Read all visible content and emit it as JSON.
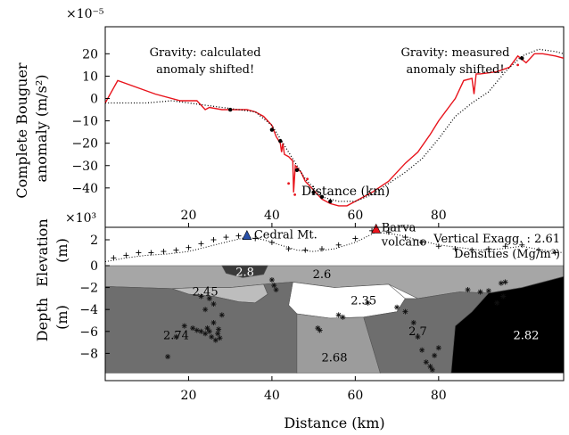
{
  "chart_data": [
    {
      "type": "line",
      "ylabel": "Complete Bouguer anomaly (m/s²)",
      "ylabel_lines": [
        "Complete Bouguer",
        "anomaly (m/s²)"
      ],
      "xlabel": "Distance (km)",
      "y_scale_label": "×10⁻⁵",
      "x_scale_label": "×10³",
      "xlim": [
        0,
        110
      ],
      "ylim": [
        -50,
        25
      ],
      "x_ticks": [
        "20",
        "40",
        "60",
        "80"
      ],
      "y_ticks": [
        "20",
        "10",
        "0",
        "−10",
        "−20",
        "−30",
        "−40"
      ],
      "annotations": [
        {
          "lines": [
            "Gravity: calculated",
            "anomaly shifted!"
          ],
          "x": 24,
          "y": 15
        },
        {
          "lines": [
            "Gravity: measured",
            "anomaly shifted!"
          ],
          "x": 84,
          "y": 15
        }
      ],
      "series": [
        {
          "style": "solid",
          "color": "#e8141c",
          "x": [
            0,
            3,
            12,
            18,
            22,
            24,
            25,
            28,
            30,
            34,
            36,
            38,
            40,
            41,
            42,
            42.3,
            42.6,
            43,
            44,
            45,
            45.2,
            45.6,
            47,
            48,
            50,
            52,
            54,
            56,
            58,
            60,
            64,
            68,
            72,
            75,
            78,
            80,
            84,
            86,
            88,
            88.5,
            89,
            90,
            94,
            97,
            99,
            101,
            103,
            105,
            108,
            110
          ],
          "y": [
            -2,
            8,
            2,
            -1,
            -1,
            -5,
            -4,
            -5,
            -5,
            -5,
            -6,
            -8,
            -12,
            -17,
            -20,
            -24,
            -20,
            -25,
            -26,
            -28,
            -42,
            -30,
            -33,
            -37,
            -41,
            -45,
            -47,
            -48,
            -48,
            -46,
            -42,
            -37,
            -29,
            -24,
            -16,
            -10,
            0,
            8,
            9,
            2,
            11,
            11,
            12,
            14,
            19,
            16,
            20,
            20,
            19,
            18
          ]
        },
        {
          "style": "dotted",
          "color": "#000000",
          "x": [
            0,
            10,
            16,
            20,
            24,
            28,
            32,
            36,
            40,
            44,
            48,
            52,
            56,
            60,
            64,
            68,
            72,
            76,
            80,
            84,
            88,
            92,
            96,
            100,
            104,
            108,
            110
          ],
          "y": [
            -2,
            -2,
            -1,
            -2,
            -3,
            -4,
            -5,
            -6,
            -12,
            -24,
            -36,
            -44,
            -46,
            -46,
            -43,
            -38,
            -33,
            -27,
            -18,
            -8,
            -2,
            3,
            12,
            19,
            22,
            21,
            20
          ]
        }
      ],
      "scatter": {
        "color": "#000000",
        "x": [
          30,
          40,
          42,
          46,
          50,
          52,
          54,
          100
        ],
        "y": [
          -5,
          -14,
          -19,
          -32,
          -42,
          -44,
          -46,
          18
        ]
      },
      "red_marks": {
        "color": "#e8141c",
        "x": [
          44,
          45.5,
          48.5,
          99
        ],
        "y": [
          -38,
          -43,
          -36,
          15
        ]
      }
    },
    {
      "type": "area",
      "xlabel": "Distance (km)",
      "elevation_ylabel": [
        "Elevation",
        "(m)"
      ],
      "depth_ylabel": [
        "Depth",
        "(m)"
      ],
      "xlim": [
        0,
        110
      ],
      "elevation_ylim": [
        0,
        3.5
      ],
      "depth_ylim": [
        -10,
        0
      ],
      "x_ticks": [
        "20",
        "40",
        "60",
        "80"
      ],
      "elevation_y_ticks": [
        "2",
        "0"
      ],
      "depth_y_ticks": [
        "−2",
        "−4",
        "−6",
        "−8"
      ],
      "vertical_exaggeration": "Vertical Exagg. : 2.61",
      "densities_label": "Densities (Mg/m³)",
      "volcanoes": [
        {
          "name": "Cedral Mt.",
          "x": 34,
          "elev": 2.3,
          "color": "#2850a8"
        },
        {
          "name_lines": [
            "Barva",
            "volcano"
          ],
          "x": 65,
          "elev": 2.8,
          "color": "#e8141c"
        }
      ],
      "topography": {
        "x": [
          0,
          5,
          10,
          15,
          20,
          25,
          30,
          34,
          38,
          42,
          46,
          50,
          55,
          60,
          65,
          70,
          75,
          80,
          85,
          90,
          95,
          100,
          105,
          110
        ],
        "y": [
          0.3,
          0.6,
          0.8,
          0.9,
          1.1,
          1.5,
          1.9,
          2.2,
          2.0,
          1.6,
          1.2,
          1.1,
          1.3,
          1.8,
          2.6,
          2.4,
          2.0,
          1.6,
          1.4,
          1.2,
          1.3,
          1.5,
          1.2,
          1.0
        ]
      },
      "bodies": [
        {
          "density": "2.6",
          "color": "#a6a6a6",
          "label_x": 52,
          "label_y": -0.8,
          "polygon": [
            [
              0,
              0
            ],
            [
              110,
              0
            ],
            [
              110,
              -1
            ],
            [
              100,
              -2
            ],
            [
              92,
              -2.5
            ],
            [
              85,
              -2.4
            ],
            [
              75,
              -3
            ],
            [
              68,
              -1.7
            ],
            [
              55,
              -2
            ],
            [
              45,
              -1.5
            ],
            [
              38,
              -1.7
            ],
            [
              30,
              -2
            ],
            [
              22,
              -2
            ],
            [
              16,
              -2.1
            ],
            [
              0,
              -1.9
            ]
          ]
        },
        {
          "density": "2.45",
          "color": "#bdbdbd",
          "label_x": 24,
          "label_y": -2.4,
          "polygon": [
            [
              16,
              -2.1
            ],
            [
              22,
              -2
            ],
            [
              30,
              -2
            ],
            [
              38,
              -1.7
            ],
            [
              39,
              -2.6
            ],
            [
              36,
              -3.4
            ],
            [
              32,
              -3.3
            ],
            [
              26,
              -2.8
            ],
            [
              20,
              -2.6
            ]
          ]
        },
        {
          "density": "2.8",
          "color": "#3a3a3a",
          "label_x": 33.5,
          "label_y": -0.6,
          "polygon": [
            [
              28,
              0
            ],
            [
              39,
              0
            ],
            [
              38,
              -0.8
            ],
            [
              33,
              -1.1
            ],
            [
              29,
              -0.7
            ]
          ]
        },
        {
          "density": "2.35",
          "color": "#ffffff",
          "label_x": 62,
          "label_y": -3.2,
          "polygon": [
            [
              45,
              -1.5
            ],
            [
              55,
              -2
            ],
            [
              68,
              -1.7
            ],
            [
              72,
              -3
            ],
            [
              70,
              -4.2
            ],
            [
              62,
              -4.7
            ],
            [
              54,
              -4.8
            ],
            [
              46,
              -4.4
            ],
            [
              44,
              -3.6
            ]
          ]
        },
        {
          "density": "2.74",
          "color": "#6e6e6e",
          "label_x": 17,
          "label_y": -6.4,
          "polygon": [
            [
              0,
              -1.9
            ],
            [
              16,
              -2.1
            ],
            [
              20,
              -2.6
            ],
            [
              26,
              -2.8
            ],
            [
              32,
              -3.3
            ],
            [
              36,
              -3.4
            ],
            [
              39,
              -2.6
            ],
            [
              38,
              -1.7
            ],
            [
              45,
              -1.5
            ],
            [
              44,
              -3.6
            ],
            [
              46,
              -4.4
            ],
            [
              46,
              -9.8
            ],
            [
              0,
              -9.8
            ]
          ]
        },
        {
          "density": "2.68",
          "color": "#9c9c9c",
          "label_x": 55,
          "label_y": -8.4,
          "polygon": [
            [
              46,
              -4.4
            ],
            [
              54,
              -4.8
            ],
            [
              62,
              -4.7
            ],
            [
              66,
              -9.8
            ],
            [
              46,
              -9.8
            ]
          ]
        },
        {
          "density": "2.7",
          "color": "#6e6e6e",
          "label_x": 75,
          "label_y": -6,
          "polygon": [
            [
              62,
              -4.7
            ],
            [
              70,
              -4.2
            ],
            [
              72,
              -3
            ],
            [
              75,
              -3
            ],
            [
              85,
              -2.4
            ],
            [
              92,
              -2.5
            ],
            [
              88,
              -4.2
            ],
            [
              84,
              -5.5
            ],
            [
              83,
              -9.8
            ],
            [
              66,
              -9.8
            ]
          ]
        },
        {
          "density": "2.82",
          "color": "#000000",
          "label_x": 101,
          "label_y": -6.4,
          "polygon": [
            [
              92,
              -2.5
            ],
            [
              100,
              -2
            ],
            [
              110,
              -1
            ],
            [
              110,
              -9.8
            ],
            [
              83,
              -9.8
            ],
            [
              84,
              -5.5
            ],
            [
              88,
              -4.2
            ]
          ]
        }
      ],
      "stations": {
        "x": [
          2,
          5,
          8,
          11,
          14,
          17,
          20,
          23,
          26,
          29,
          32,
          36,
          40,
          44,
          48,
          52,
          56,
          60,
          64,
          68,
          72,
          76,
          80,
          84,
          88,
          92,
          96,
          100,
          104,
          108
        ],
        "y": [
          0.6,
          0.8,
          1.0,
          1.0,
          1.1,
          1.2,
          1.4,
          1.7,
          2.0,
          2.2,
          2.3,
          2.1,
          1.8,
          1.3,
          1.2,
          1.3,
          1.6,
          2.1,
          2.7,
          2.6,
          2.2,
          1.8,
          1.5,
          1.3,
          1.2,
          1.3,
          1.5,
          1.6,
          1.2,
          1.0
        ]
      },
      "earthquakes": {
        "x": [
          15,
          17,
          19,
          21,
          22,
          23,
          24,
          24.5,
          25,
          25.5,
          26,
          26.5,
          27,
          27.2,
          27.5,
          28,
          26,
          25,
          24,
          23,
          40,
          40.5,
          41,
          51,
          51.5,
          56,
          57,
          63,
          70,
          72,
          74,
          75,
          76,
          77,
          78,
          78.5,
          79,
          80,
          87,
          90,
          92,
          95,
          96,
          95.5,
          94
        ],
        "y": [
          -8.3,
          -6.5,
          -5.5,
          -5.7,
          -5.9,
          -6,
          -6.2,
          -5.7,
          -6,
          -6.5,
          -5.2,
          -6.8,
          -6.2,
          -5.8,
          -6.6,
          -4.5,
          -3.5,
          -3.0,
          -4.0,
          -2.8,
          -1.3,
          -1.8,
          -2.2,
          -5.7,
          -5.9,
          -4.5,
          -4.7,
          -3.4,
          -3.8,
          -4.2,
          -5.2,
          -6.5,
          -7.7,
          -8.8,
          -9.2,
          -9.5,
          -8.2,
          -7.5,
          -2.2,
          -2.4,
          -2.3,
          -1.6,
          -1.5,
          -2.8,
          -3.4
        ]
      }
    }
  ]
}
